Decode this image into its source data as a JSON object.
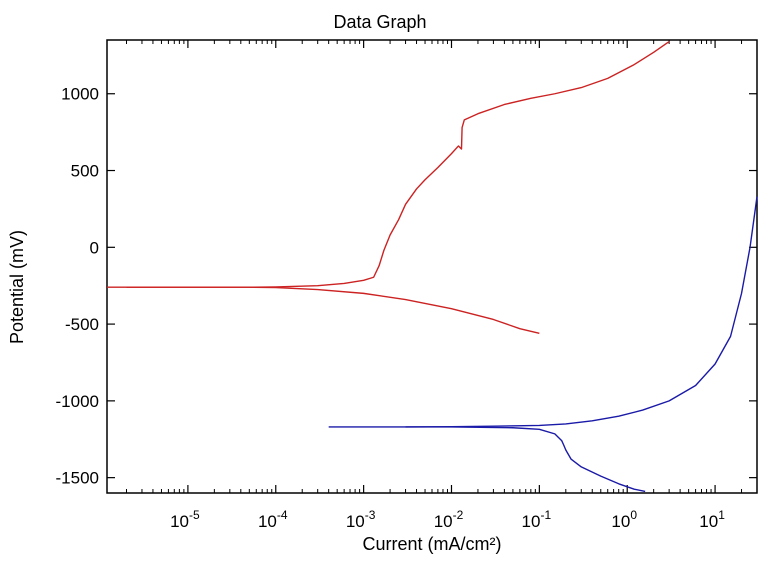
{
  "chart_data": {
    "type": "line",
    "title": "Data Graph",
    "xlabel": "Current (mA/cm²)",
    "ylabel": "Potential (mV)",
    "x_scale": "log",
    "xlim": [
      1.2e-06,
      30
    ],
    "ylim": [
      -1600,
      1350
    ],
    "grid": false,
    "x_ticks": [
      {
        "base": "10",
        "exp": "-5",
        "value": 1e-05
      },
      {
        "base": "10",
        "exp": "-4",
        "value": 0.0001
      },
      {
        "base": "10",
        "exp": "-3",
        "value": 0.001
      },
      {
        "base": "10",
        "exp": "-2",
        "value": 0.01
      },
      {
        "base": "10",
        "exp": "-1",
        "value": 0.1
      },
      {
        "base": "10",
        "exp": "0",
        "value": 1
      },
      {
        "base": "10",
        "exp": "1",
        "value": 10
      }
    ],
    "y_ticks": [
      {
        "label": "1000",
        "value": 1000
      },
      {
        "label": "500",
        "value": 500
      },
      {
        "label": "0",
        "value": 0
      },
      {
        "label": "-500",
        "value": -500
      },
      {
        "label": "-1000",
        "value": -1000
      },
      {
        "label": "-1500",
        "value": -1500
      }
    ],
    "series": [
      {
        "color": "#cc2222",
        "points": [
          [
            1.2e-06,
            -260
          ],
          [
            1e-05,
            -260
          ],
          [
            5e-05,
            -260
          ],
          [
            0.0001,
            -258
          ],
          [
            0.0003,
            -250
          ],
          [
            0.0006,
            -235
          ],
          [
            0.001,
            -215
          ],
          [
            0.0013,
            -195
          ],
          [
            0.0015,
            -120
          ],
          [
            0.0017,
            -20
          ],
          [
            0.002,
            80
          ],
          [
            0.0025,
            180
          ],
          [
            0.003,
            280
          ],
          [
            0.004,
            380
          ],
          [
            0.005,
            440
          ],
          [
            0.007,
            520
          ],
          [
            0.01,
            610
          ],
          [
            0.012,
            660
          ],
          [
            0.013,
            640
          ],
          [
            0.0132,
            780
          ],
          [
            0.014,
            830
          ],
          [
            0.02,
            870
          ],
          [
            0.04,
            930
          ],
          [
            0.08,
            970
          ],
          [
            0.15,
            1000
          ],
          [
            0.3,
            1040
          ],
          [
            0.6,
            1100
          ],
          [
            1.2,
            1190
          ],
          [
            2,
            1270
          ],
          [
            3,
            1340
          ]
        ]
      },
      {
        "color": "#cc2222",
        "points": [
          [
            2e-06,
            -260
          ],
          [
            1e-05,
            -260
          ],
          [
            5e-05,
            -260
          ],
          [
            0.0001,
            -262
          ],
          [
            0.0003,
            -275
          ],
          [
            0.001,
            -300
          ],
          [
            0.003,
            -340
          ],
          [
            0.01,
            -400
          ],
          [
            0.03,
            -470
          ],
          [
            0.06,
            -530
          ],
          [
            0.1,
            -560
          ]
        ]
      },
      {
        "color": "#1a1aa8",
        "points": [
          [
            0.0004,
            -1170
          ],
          [
            0.001,
            -1170
          ],
          [
            0.003,
            -1170
          ],
          [
            0.01,
            -1168
          ],
          [
            0.03,
            -1165
          ],
          [
            0.1,
            -1160
          ],
          [
            0.2,
            -1150
          ],
          [
            0.4,
            -1130
          ],
          [
            0.8,
            -1100
          ],
          [
            1.5,
            -1060
          ],
          [
            3,
            -1000
          ],
          [
            6,
            -900
          ],
          [
            10,
            -760
          ],
          [
            15,
            -580
          ],
          [
            20,
            -300
          ],
          [
            25,
            0
          ],
          [
            30,
            330
          ]
        ]
      },
      {
        "color": "#1a1aa8",
        "points": [
          [
            0.003,
            -1170
          ],
          [
            0.01,
            -1170
          ],
          [
            0.05,
            -1175
          ],
          [
            0.1,
            -1185
          ],
          [
            0.15,
            -1215
          ],
          [
            0.18,
            -1260
          ],
          [
            0.19,
            -1290
          ],
          [
            0.2,
            -1320
          ],
          [
            0.23,
            -1380
          ],
          [
            0.3,
            -1430
          ],
          [
            0.5,
            -1490
          ],
          [
            0.8,
            -1540
          ],
          [
            1.2,
            -1575
          ],
          [
            1.6,
            -1590
          ]
        ]
      }
    ]
  }
}
